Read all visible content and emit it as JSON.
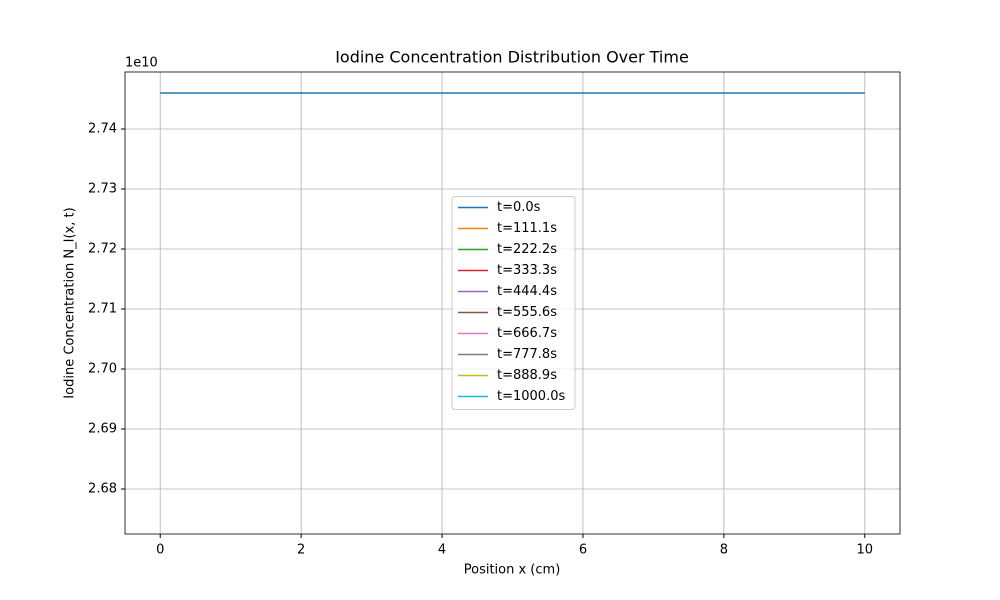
{
  "chart_data": {
    "type": "line",
    "title": "Iodine Concentration Distribution Over Time",
    "x_label": "Position x (cm)",
    "y_label": "Iodine Concentration N_I(x, t)",
    "y_offset_label": "1e10",
    "x": [
      0,
      10
    ],
    "series": [
      {
        "name": "t=0.0s",
        "color": "#1f77b4",
        "values": [
          27460000000,
          27460000000
        ]
      },
      {
        "name": "t=111.1s",
        "color": "#ff7f0e",
        "values": [
          null,
          null
        ]
      },
      {
        "name": "t=222.2s",
        "color": "#2ca02c",
        "values": [
          null,
          null
        ]
      },
      {
        "name": "t=333.3s",
        "color": "#d62728",
        "values": [
          null,
          null
        ]
      },
      {
        "name": "t=444.4s",
        "color": "#9467bd",
        "values": [
          null,
          null
        ]
      },
      {
        "name": "t=555.6s",
        "color": "#8c564b",
        "values": [
          null,
          null
        ]
      },
      {
        "name": "t=666.7s",
        "color": "#e377c2",
        "values": [
          null,
          null
        ]
      },
      {
        "name": "t=777.8s",
        "color": "#7f7f7f",
        "values": [
          null,
          null
        ]
      },
      {
        "name": "t=888.9s",
        "color": "#bcbd22",
        "values": [
          null,
          null
        ]
      },
      {
        "name": "t=1000.0s",
        "color": "#17becf",
        "values": [
          null,
          null
        ]
      }
    ],
    "xlim": [
      -0.5,
      10.5
    ],
    "xticks": [
      0,
      2,
      4,
      6,
      8,
      10
    ],
    "ylim": [
      26725000000,
      27495000000
    ],
    "yticks": [
      {
        "value": 26800000000,
        "label": "2.68"
      },
      {
        "value": 26900000000,
        "label": "2.69"
      },
      {
        "value": 27000000000,
        "label": "2.70"
      },
      {
        "value": 27100000000,
        "label": "2.71"
      },
      {
        "value": 27200000000,
        "label": "2.72"
      },
      {
        "value": 27300000000,
        "label": "2.73"
      },
      {
        "value": 27400000000,
        "label": "2.74"
      }
    ],
    "grid": true,
    "legend": "center"
  }
}
